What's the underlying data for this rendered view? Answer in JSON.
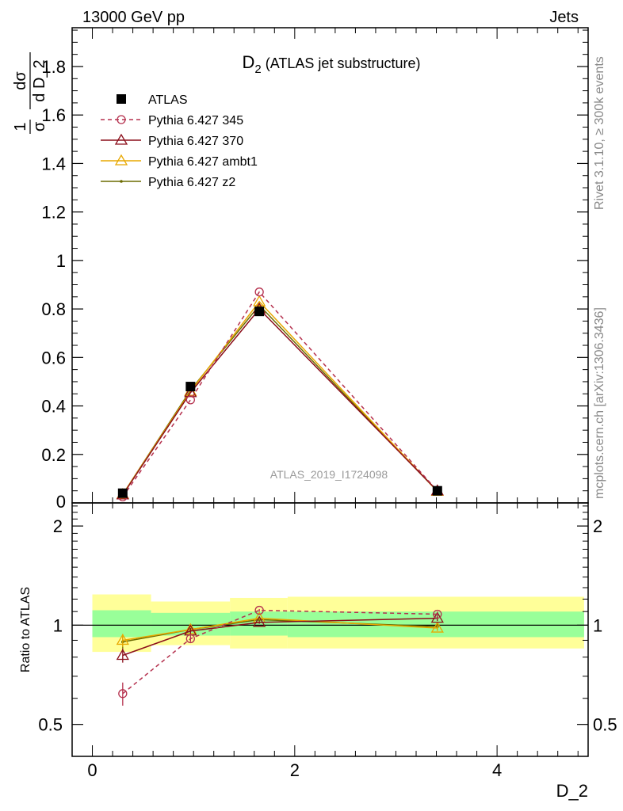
{
  "header": {
    "left": "13000 GeV pp",
    "right": "Jets"
  },
  "side_labels": {
    "rivet": "Rivet 3.1.10, ≥ 300k events",
    "mcplots": "mcplots.cern.ch [arXiv:1306.3436]"
  },
  "watermark": "ATLAS_2019_I1724098",
  "chart_data": [
    {
      "panel": "main",
      "type": "line",
      "title_main": "D",
      "title_sub": "2",
      "title_rest": " (ATLAS jet substructure)",
      "ylabel_parts": {
        "frac1_num": "1",
        "frac1_den": "σ",
        "frac2_num": "dσ",
        "frac2_den": "d D_2"
      },
      "xlim": [
        -0.2,
        4.9
      ],
      "ylim": [
        0,
        1.96
      ],
      "yticks": [
        0.2,
        0.4,
        0.6,
        0.8,
        1,
        1.2,
        1.4,
        1.6,
        1.8
      ],
      "ytick_labels": [
        "0.2",
        "0.4",
        "0.6",
        "0.8",
        "1",
        "1.2",
        "1.4",
        "1.6",
        "1.8"
      ],
      "y_zero_label": "0",
      "grid": false,
      "legend_position": "top-left",
      "x": [
        0.3,
        0.97,
        1.65,
        3.41
      ],
      "series": [
        {
          "name": "ATLAS",
          "marker": "filled-square",
          "color": "#000000",
          "values": [
            0.04,
            0.48,
            0.79,
            0.05
          ]
        },
        {
          "name": "Pythia 6.427 345",
          "marker": "open-circle",
          "dash": true,
          "color": "#b5314e",
          "values": [
            0.025,
            0.425,
            0.87,
            0.05
          ]
        },
        {
          "name": "Pythia 6.427 370",
          "marker": "open-triangle",
          "color": "#8b0e1a",
          "values": [
            0.033,
            0.455,
            0.8,
            0.05
          ]
        },
        {
          "name": "Pythia 6.427 ambt1",
          "marker": "open-triangle",
          "color": "#e8a800",
          "values": [
            0.035,
            0.46,
            0.83,
            0.048
          ]
        },
        {
          "name": "Pythia 6.427 z2",
          "marker": "dot",
          "color": "#6b6b00",
          "values": [
            0.035,
            0.465,
            0.815,
            0.048
          ]
        }
      ]
    },
    {
      "panel": "ratio",
      "type": "line",
      "ylabel": "Ratio to ATLAS",
      "xlabel": "D_2",
      "xlim": [
        -0.2,
        4.9
      ],
      "ylim": [
        0.4,
        2.35
      ],
      "yticks": [
        0.5,
        1,
        2
      ],
      "ytick_labels": [
        "0.5",
        "1",
        "2"
      ],
      "xticks": [
        0,
        2,
        4
      ],
      "xtick_labels": [
        "0",
        "2",
        "4"
      ],
      "bins": [
        {
          "lo": 0.0,
          "hi": 0.58,
          "inner": [
            0.92,
            1.11
          ],
          "outer": [
            0.83,
            1.24
          ]
        },
        {
          "lo": 0.58,
          "hi": 1.36,
          "inner": [
            0.93,
            1.09
          ],
          "outer": [
            0.87,
            1.18
          ]
        },
        {
          "lo": 1.36,
          "hi": 1.93,
          "inner": [
            0.93,
            1.1
          ],
          "outer": [
            0.85,
            1.21
          ]
        },
        {
          "lo": 1.93,
          "hi": 4.86,
          "inner": [
            0.92,
            1.1
          ],
          "outer": [
            0.85,
            1.22
          ]
        }
      ],
      "series": [
        {
          "name": "Pythia 6.427 345",
          "values": [
            0.62,
            0.91,
            1.11,
            1.08
          ],
          "errors": [
            0.05,
            0.02,
            0.01,
            0.02
          ]
        },
        {
          "name": "Pythia 6.427 370",
          "values": [
            0.81,
            0.96,
            1.02,
            1.05
          ],
          "errors": [
            0.04,
            0.02,
            0.01,
            0.02
          ]
        },
        {
          "name": "Pythia 6.427 ambt1",
          "values": [
            0.9,
            0.97,
            1.05,
            0.98
          ],
          "errors": [
            0.04,
            0.02,
            0.01,
            0.02
          ]
        },
        {
          "name": "Pythia 6.427 z2",
          "values": [
            0.89,
            0.97,
            1.04,
            0.99
          ],
          "errors": [
            0.04,
            0.02,
            0.01,
            0.02
          ]
        }
      ]
    }
  ]
}
